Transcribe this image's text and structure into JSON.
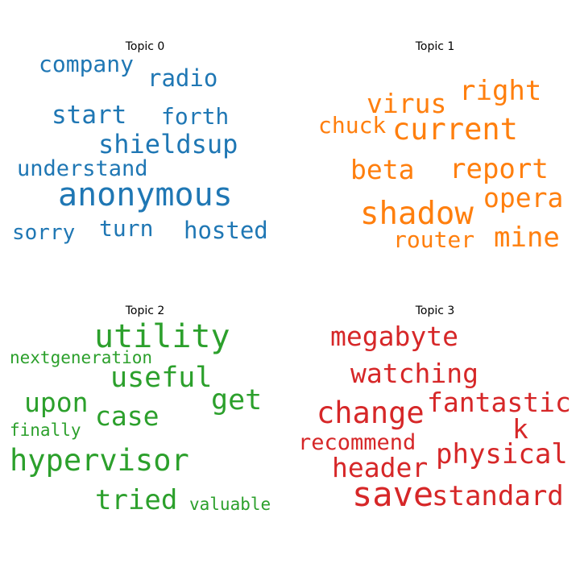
{
  "topics": [
    {
      "title": "Topic 0",
      "color": "#1f77b4",
      "words": [
        "company",
        "radio",
        "start",
        "forth",
        "shieldsup",
        "understand",
        "anonymous",
        "sorry",
        "turn",
        "hosted"
      ]
    },
    {
      "title": "Topic 1",
      "color": "#ff7f0e",
      "words": [
        "right",
        "virus",
        "chuck",
        "current",
        "beta",
        "report",
        "opera",
        "shadow",
        "router",
        "mine"
      ]
    },
    {
      "title": "Topic 2",
      "color": "#2ca02c",
      "words": [
        "utility",
        "nextgeneration",
        "useful",
        "upon",
        "get",
        "case",
        "finally",
        "hypervisor",
        "tried",
        "valuable"
      ]
    },
    {
      "title": "Topic 3",
      "color": "#d62728",
      "words": [
        "megabyte",
        "watching",
        "fantastic",
        "change",
        "k",
        "recommend",
        "physical",
        "header",
        "save",
        "standard"
      ]
    }
  ]
}
